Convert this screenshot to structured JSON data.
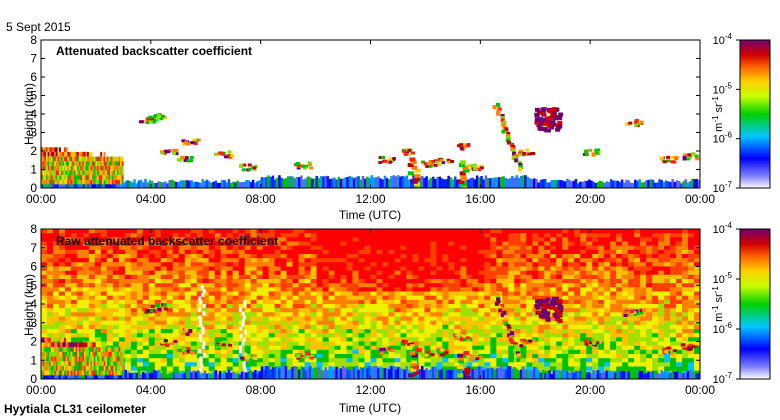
{
  "header": {
    "date": "5 Sept 2015"
  },
  "footer": {
    "instrument": "Hyytiala CL31 ceilometer"
  },
  "colorbar": {
    "unit_base": "m",
    "unit_exp1": "-1",
    "unit_mid": " sr",
    "unit_exp2": "-1"
  },
  "chart_data": [
    {
      "type": "heatmap",
      "title": "Attenuated backscatter coefficient",
      "xlabel": "Time (UTC)",
      "ylabel": "Height (km)",
      "x_ticks": [
        "00:00",
        "04:00",
        "08:00",
        "12:00",
        "16:00",
        "20:00",
        "00:00"
      ],
      "y_ticks": [
        "0",
        "1",
        "2",
        "3",
        "4",
        "5",
        "6",
        "7",
        "8"
      ],
      "xlim": [
        0,
        24
      ],
      "ylim": [
        0,
        8
      ],
      "colorbar": {
        "scale": "log",
        "range": [
          1e-07,
          0.0001
        ],
        "ticks": [
          "10",
          "10",
          "10",
          "10"
        ],
        "tick_exps": [
          "-7",
          "-6",
          "-5",
          "-4"
        ]
      },
      "features": [
        {
          "name": "boundary layer aerosol",
          "t_start": 0,
          "t_end": 24,
          "h_top": 0.6
        },
        {
          "name": "morning low cloud",
          "t_start": 0,
          "t_end": 3.0,
          "h_top": 2.2
        },
        {
          "name": "elevated cloud",
          "time": 18.5,
          "height": 4.0
        }
      ]
    },
    {
      "type": "heatmap",
      "title": "Raw attenuated backscatter coefficient",
      "xlabel": "Time (UTC)",
      "ylabel": "Height (km)",
      "x_ticks": [
        "00:00",
        "04:00",
        "08:00",
        "12:00",
        "16:00",
        "20:00",
        "00:00"
      ],
      "y_ticks": [
        "0",
        "1",
        "2",
        "3",
        "4",
        "5",
        "6",
        "7",
        "8"
      ],
      "xlim": [
        0,
        24
      ],
      "ylim": [
        0,
        8
      ],
      "colorbar": {
        "scale": "log",
        "range": [
          1e-07,
          0.0001
        ],
        "ticks": [
          "10",
          "10",
          "10",
          "10"
        ],
        "tick_exps": [
          "-7",
          "-6",
          "-5",
          "-4"
        ]
      }
    }
  ]
}
